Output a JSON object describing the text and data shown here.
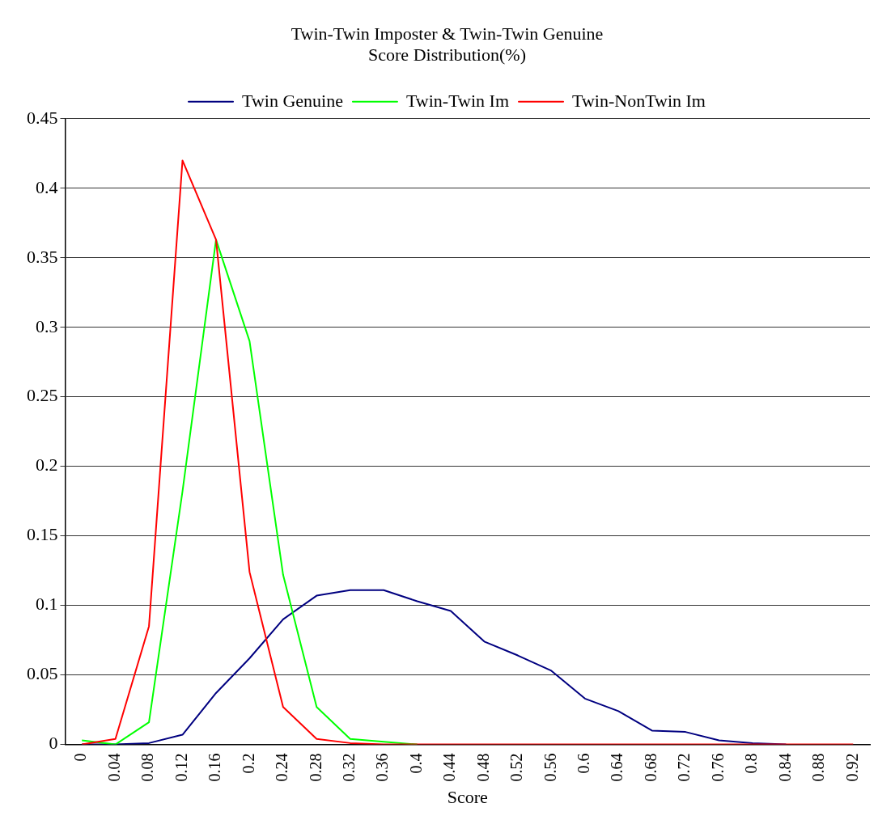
{
  "chart_data": {
    "type": "line",
    "title": "Twin-Twin Imposter & Twin-Twin Genuine\nScore Distribution(%)",
    "xlabel": "Score",
    "categories": [
      "0",
      "0.04",
      "0.08",
      "0.12",
      "0.16",
      "0.2",
      "0.24",
      "0.28",
      "0.32",
      "0.36",
      "0.4",
      "0.44",
      "0.48",
      "0.52",
      "0.56",
      "0.6",
      "0.64",
      "0.68",
      "0.72",
      "0.76",
      "0.8",
      "0.84",
      "0.88",
      "0.92"
    ],
    "series": [
      {
        "name": "Twin Genuine",
        "color": "#000080",
        "values": [
          0,
          0,
          0.001,
          0.007,
          0.037,
          0.062,
          0.09,
          0.107,
          0.111,
          0.111,
          0.103,
          0.096,
          0.074,
          0.064,
          0.053,
          0.033,
          0.024,
          0.01,
          0.009,
          0.003,
          0.001,
          0,
          null,
          null
        ]
      },
      {
        "name": "Twin-Twin Im",
        "color": "#00ff00",
        "values": [
          0.003,
          0,
          0.016,
          0.182,
          0.363,
          0.29,
          0.122,
          0.027,
          0.004,
          0.002,
          0,
          null,
          null,
          null,
          null,
          null,
          null,
          null,
          null,
          null,
          null,
          null,
          null,
          null
        ]
      },
      {
        "name": "Twin-NonTwin Im",
        "color": "#ff0000",
        "values": [
          0,
          0.004,
          0.085,
          0.42,
          0.363,
          0.124,
          0.027,
          0.004,
          0.001,
          0,
          0,
          0,
          0,
          0,
          0,
          0,
          0,
          0,
          0,
          0,
          0,
          0,
          0,
          0
        ]
      }
    ],
    "ylim": [
      0,
      0.45
    ],
    "yticks": [
      0,
      0.05,
      0.1,
      0.15,
      0.2,
      0.25,
      0.3,
      0.35,
      0.4,
      0.45
    ],
    "grid": "y",
    "legend": "top",
    "marker": "none",
    "line_style": "solid"
  }
}
